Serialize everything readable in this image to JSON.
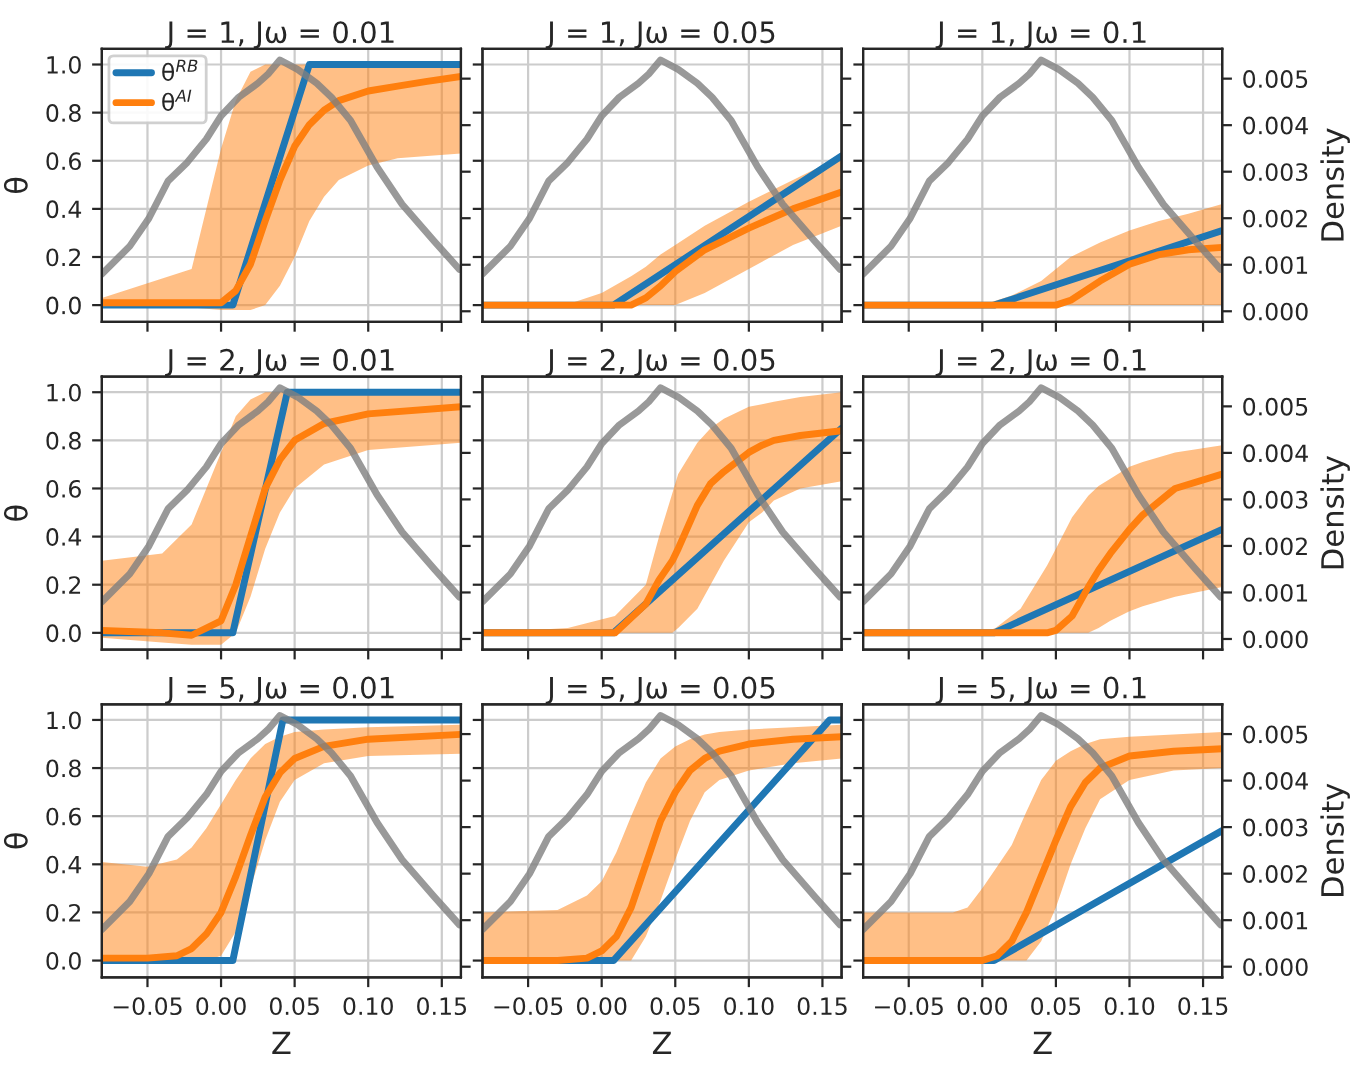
{
  "chart_data": [
    {
      "type": "line",
      "title": "J = 1, Jω = 0.01",
      "ylabel": "θ",
      "tick_labels": [
        "y"
      ],
      "legend": "top left",
      "grid": true,
      "xlim": [
        -0.081,
        0.163
      ],
      "ylim": [
        -0.07,
        1.065
      ],
      "yticks": [
        {
          "value": 0,
          "label": "0.0"
        },
        {
          "value": 0.2,
          "label": "0.2"
        },
        {
          "value": 0.4,
          "label": "0.4"
        },
        {
          "value": 0.6,
          "label": "0.6"
        },
        {
          "value": 0.8,
          "label": "0.8"
        },
        {
          "value": 1,
          "label": "1.0"
        }
      ],
      "y2lim": [
        -0.00023,
        0.00564
      ],
      "series": [
        {
          "name": "θ$^{RB}$",
          "color": "#1f77b4",
          "x": [
            -0.081,
            0.008,
            0.06,
            0.163
          ],
          "values": [
            0,
            0,
            1,
            1
          ]
        },
        {
          "name": "θ$^{AI}$",
          "color": "#ff7f0e",
          "x": [
            -0.081,
            -0.02,
            0.0,
            0.01,
            0.02,
            0.03,
            0.04,
            0.05,
            0.06,
            0.07,
            0.08,
            0.1,
            0.12,
            0.14,
            0.163
          ],
          "values": [
            0.01,
            0.01,
            0.01,
            0.06,
            0.17,
            0.35,
            0.52,
            0.66,
            0.75,
            0.81,
            0.85,
            0.89,
            0.91,
            0.93,
            0.95
          ],
          "lower": [
            0,
            -0.01,
            -0.02,
            -0.02,
            -0.02,
            0,
            0.08,
            0.2,
            0.35,
            0.45,
            0.52,
            0.58,
            0.61,
            0.62,
            0.63
          ],
          "upper": [
            0.03,
            0.15,
            0.65,
            0.85,
            0.97,
            1,
            1,
            1,
            1,
            1,
            1,
            1,
            1,
            1,
            1
          ]
        },
        {
          "color": "#808080",
          "axis": "y2",
          "x": [
            -0.081,
            -0.062,
            -0.049,
            -0.036,
            -0.023,
            -0.01,
            0.0,
            0.012,
            0.025,
            0.032,
            0.04,
            0.052,
            0.065,
            0.075,
            0.088,
            0.106,
            0.123,
            0.145,
            0.162
          ],
          "values": [
            0.0008,
            0.0014,
            0.002,
            0.0028,
            0.0032,
            0.0037,
            0.0042,
            0.0046,
            0.0049,
            0.0051,
            0.0054,
            0.0052,
            0.0049,
            0.0046,
            0.0041,
            0.0031,
            0.0023,
            0.0015,
            0.0009
          ]
        }
      ]
    },
    {
      "type": "line",
      "title": "J = 1, Jω = 0.05",
      "tick_labels": false,
      "grid": true,
      "xlim": [
        -0.081,
        0.163
      ],
      "ylim": [
        -0.07,
        1.065
      ],
      "y2lim": [
        -0.00023,
        0.00564
      ],
      "series": [
        {
          "color": "#1f77b4",
          "x": [
            -0.081,
            0.008,
            0.163
          ],
          "values": [
            0,
            0,
            0.62
          ]
        },
        {
          "color": "#ff7f0e",
          "x": [
            -0.081,
            -0.02,
            0.0,
            0.02,
            0.03,
            0.04,
            0.05,
            0.07,
            0.1,
            0.13,
            0.163
          ],
          "values": [
            0,
            0,
            0,
            0,
            0.03,
            0.08,
            0.14,
            0.23,
            0.32,
            0.4,
            0.47
          ],
          "lower": [
            0,
            0,
            0,
            0,
            0,
            0,
            0,
            0.05,
            0.15,
            0.25,
            0.33
          ],
          "upper": [
            0,
            0.01,
            0.05,
            0.12,
            0.16,
            0.21,
            0.25,
            0.33,
            0.43,
            0.52,
            0.62
          ]
        },
        {
          "color": "#808080",
          "axis": "y2",
          "x": [
            -0.081,
            -0.062,
            -0.049,
            -0.036,
            -0.023,
            -0.01,
            0.0,
            0.012,
            0.025,
            0.032,
            0.04,
            0.052,
            0.065,
            0.075,
            0.088,
            0.106,
            0.123,
            0.145,
            0.162
          ],
          "values": [
            0.0008,
            0.0014,
            0.002,
            0.0028,
            0.0032,
            0.0037,
            0.0042,
            0.0046,
            0.0049,
            0.0051,
            0.0054,
            0.0052,
            0.0049,
            0.0046,
            0.0041,
            0.0031,
            0.0023,
            0.0015,
            0.0009
          ]
        }
      ]
    },
    {
      "type": "line",
      "title": "J = 1, Jω = 0.1",
      "y2label": "Density",
      "tick_labels": [
        "y2"
      ],
      "grid": true,
      "xlim": [
        -0.081,
        0.163
      ],
      "ylim": [
        -0.07,
        1.065
      ],
      "y2lim": [
        -0.00023,
        0.00564
      ],
      "y2ticks": [
        {
          "value": 0,
          "label": "0.000"
        },
        {
          "value": 0.001,
          "label": "0.001"
        },
        {
          "value": 0.002,
          "label": "0.002"
        },
        {
          "value": 0.003,
          "label": "0.003"
        },
        {
          "value": 0.004,
          "label": "0.004"
        },
        {
          "value": 0.005,
          "label": "0.005"
        }
      ],
      "series": [
        {
          "color": "#1f77b4",
          "x": [
            -0.081,
            0.008,
            0.163
          ],
          "values": [
            0,
            0,
            0.31
          ]
        },
        {
          "color": "#ff7f0e",
          "x": [
            -0.081,
            0.0,
            0.02,
            0.04,
            0.05,
            0.06,
            0.08,
            0.1,
            0.12,
            0.14,
            0.163
          ],
          "values": [
            0,
            0,
            0,
            0,
            0,
            0.02,
            0.1,
            0.17,
            0.21,
            0.23,
            0.24
          ],
          "lower": [
            0,
            0,
            0,
            0,
            0,
            0,
            0,
            0,
            0,
            0,
            0
          ],
          "upper": [
            0,
            0,
            0.04,
            0.1,
            0.15,
            0.2,
            0.26,
            0.31,
            0.35,
            0.38,
            0.42
          ]
        },
        {
          "color": "#808080",
          "axis": "y2",
          "x": [
            -0.081,
            -0.062,
            -0.049,
            -0.036,
            -0.023,
            -0.01,
            0.0,
            0.012,
            0.025,
            0.032,
            0.04,
            0.052,
            0.065,
            0.075,
            0.088,
            0.106,
            0.123,
            0.145,
            0.162
          ],
          "values": [
            0.0008,
            0.0014,
            0.002,
            0.0028,
            0.0032,
            0.0037,
            0.0042,
            0.0046,
            0.0049,
            0.0051,
            0.0054,
            0.0052,
            0.0049,
            0.0046,
            0.0041,
            0.0031,
            0.0023,
            0.0015,
            0.0009
          ]
        }
      ]
    },
    {
      "type": "line",
      "title": "J = 2, Jω = 0.01",
      "ylabel": "θ",
      "tick_labels": [
        "y"
      ],
      "grid": true,
      "xlim": [
        -0.081,
        0.163
      ],
      "ylim": [
        -0.07,
        1.065
      ],
      "yticks": [
        {
          "value": 0,
          "label": "0.0"
        },
        {
          "value": 0.2,
          "label": "0.2"
        },
        {
          "value": 0.4,
          "label": "0.4"
        },
        {
          "value": 0.6,
          "label": "0.6"
        },
        {
          "value": 0.8,
          "label": "0.8"
        },
        {
          "value": 1,
          "label": "1.0"
        }
      ],
      "y2lim": [
        -0.00023,
        0.00564
      ],
      "series": [
        {
          "color": "#1f77b4",
          "x": [
            -0.081,
            0.008,
            0.045,
            0.163
          ],
          "values": [
            0,
            0,
            1,
            1
          ]
        },
        {
          "color": "#ff7f0e",
          "x": [
            -0.081,
            -0.04,
            -0.02,
            0.0,
            0.01,
            0.02,
            0.03,
            0.04,
            0.05,
            0.07,
            0.1,
            0.163
          ],
          "values": [
            0.01,
            0.0,
            -0.01,
            0.05,
            0.2,
            0.4,
            0.6,
            0.72,
            0.8,
            0.87,
            0.91,
            0.94
          ],
          "lower": [
            -0.02,
            -0.04,
            -0.05,
            -0.05,
            0.0,
            0.15,
            0.35,
            0.5,
            0.6,
            0.7,
            0.76,
            0.79
          ],
          "upper": [
            0.3,
            0.33,
            0.45,
            0.75,
            0.9,
            0.97,
            1,
            1,
            1,
            1,
            1,
            1
          ]
        },
        {
          "color": "#808080",
          "axis": "y2",
          "x": [
            -0.081,
            -0.062,
            -0.049,
            -0.036,
            -0.023,
            -0.01,
            0.0,
            0.012,
            0.025,
            0.032,
            0.04,
            0.052,
            0.065,
            0.075,
            0.088,
            0.106,
            0.123,
            0.145,
            0.162
          ],
          "values": [
            0.0008,
            0.0014,
            0.002,
            0.0028,
            0.0032,
            0.0037,
            0.0042,
            0.0046,
            0.0049,
            0.0051,
            0.0054,
            0.0052,
            0.0049,
            0.0046,
            0.0041,
            0.0031,
            0.0023,
            0.0015,
            0.0009
          ]
        }
      ]
    },
    {
      "type": "line",
      "title": "J = 2, Jω = 0.05",
      "tick_labels": false,
      "grid": true,
      "xlim": [
        -0.081,
        0.163
      ],
      "ylim": [
        -0.07,
        1.065
      ],
      "y2lim": [
        -0.00023,
        0.00564
      ],
      "series": [
        {
          "color": "#1f77b4",
          "x": [
            -0.081,
            0.008,
            0.163
          ],
          "values": [
            0,
            0,
            0.85
          ]
        },
        {
          "color": "#ff7f0e",
          "x": [
            -0.081,
            -0.023,
            0.009,
            0.03,
            0.039,
            0.048,
            0.052,
            0.065,
            0.074,
            0.083,
            0.1,
            0.109,
            0.117,
            0.135,
            0.163
          ],
          "values": [
            0,
            0,
            0,
            0.12,
            0.22,
            0.3,
            0.35,
            0.53,
            0.62,
            0.67,
            0.75,
            0.78,
            0.8,
            0.82,
            0.84
          ],
          "lower": [
            0,
            0,
            0,
            0,
            0,
            0,
            0.02,
            0.1,
            0.2,
            0.3,
            0.46,
            0.5,
            0.55,
            0.6,
            0.63
          ],
          "upper": [
            0,
            0.02,
            0.07,
            0.2,
            0.4,
            0.58,
            0.66,
            0.79,
            0.85,
            0.89,
            0.94,
            0.95,
            0.96,
            0.98,
            1.0
          ]
        },
        {
          "color": "#808080",
          "axis": "y2",
          "x": [
            -0.081,
            -0.062,
            -0.049,
            -0.036,
            -0.023,
            -0.01,
            0.0,
            0.012,
            0.025,
            0.032,
            0.04,
            0.052,
            0.065,
            0.075,
            0.088,
            0.106,
            0.123,
            0.145,
            0.162
          ],
          "values": [
            0.0008,
            0.0014,
            0.002,
            0.0028,
            0.0032,
            0.0037,
            0.0042,
            0.0046,
            0.0049,
            0.0051,
            0.0054,
            0.0052,
            0.0049,
            0.0046,
            0.0041,
            0.0031,
            0.0023,
            0.0015,
            0.0009
          ]
        }
      ]
    },
    {
      "type": "line",
      "title": "J = 2, Jω = 0.1",
      "y2label": "Density",
      "tick_labels": [
        "y2"
      ],
      "grid": true,
      "xlim": [
        -0.081,
        0.163
      ],
      "ylim": [
        -0.07,
        1.065
      ],
      "y2lim": [
        -0.00023,
        0.00564
      ],
      "y2ticks": [
        {
          "value": 0,
          "label": "0.000"
        },
        {
          "value": 0.001,
          "label": "0.001"
        },
        {
          "value": 0.002,
          "label": "0.002"
        },
        {
          "value": 0.003,
          "label": "0.003"
        },
        {
          "value": 0.004,
          "label": "0.004"
        },
        {
          "value": 0.005,
          "label": "0.005"
        }
      ],
      "series": [
        {
          "color": "#1f77b4",
          "x": [
            -0.081,
            0.008,
            0.163
          ],
          "values": [
            0,
            0,
            0.43
          ]
        },
        {
          "color": "#ff7f0e",
          "x": [
            -0.081,
            0.0,
            0.009,
            0.026,
            0.044,
            0.05,
            0.061,
            0.072,
            0.079,
            0.087,
            0.1,
            0.109,
            0.131,
            0.163
          ],
          "values": [
            0,
            0,
            0,
            0,
            0,
            0.01,
            0.07,
            0.19,
            0.26,
            0.33,
            0.43,
            0.49,
            0.6,
            0.66
          ],
          "lower": [
            0,
            0,
            0,
            0,
            0,
            0,
            0,
            0,
            0.02,
            0.05,
            0.09,
            0.11,
            0.15,
            0.19
          ],
          "upper": [
            0,
            0,
            0.02,
            0.1,
            0.28,
            0.35,
            0.48,
            0.57,
            0.61,
            0.64,
            0.69,
            0.71,
            0.75,
            0.78
          ]
        },
        {
          "color": "#808080",
          "axis": "y2",
          "x": [
            -0.081,
            -0.062,
            -0.049,
            -0.036,
            -0.023,
            -0.01,
            0.0,
            0.012,
            0.025,
            0.032,
            0.04,
            0.052,
            0.065,
            0.075,
            0.088,
            0.106,
            0.123,
            0.145,
            0.162
          ],
          "values": [
            0.0008,
            0.0014,
            0.002,
            0.0028,
            0.0032,
            0.0037,
            0.0042,
            0.0046,
            0.0049,
            0.0051,
            0.0054,
            0.0052,
            0.0049,
            0.0046,
            0.0041,
            0.0031,
            0.0023,
            0.0015,
            0.0009
          ]
        }
      ]
    },
    {
      "type": "line",
      "title": "J = 5, Jω = 0.01",
      "ylabel": "θ",
      "xlabel": "Z",
      "tick_labels": [
        "x",
        "y"
      ],
      "grid": true,
      "xlim": [
        -0.081,
        0.163
      ],
      "xticks": [
        {
          "value": -0.05,
          "label": "−0.05"
        },
        {
          "value": 0,
          "label": "0.00"
        },
        {
          "value": 0.05,
          "label": "0.05"
        },
        {
          "value": 0.1,
          "label": "0.10"
        },
        {
          "value": 0.15,
          "label": "0.15"
        }
      ],
      "ylim": [
        -0.07,
        1.065
      ],
      "yticks": [
        {
          "value": 0,
          "label": "0.0"
        },
        {
          "value": 0.2,
          "label": "0.2"
        },
        {
          "value": 0.4,
          "label": "0.4"
        },
        {
          "value": 0.6,
          "label": "0.6"
        },
        {
          "value": 0.8,
          "label": "0.8"
        },
        {
          "value": 1,
          "label": "1.0"
        }
      ],
      "y2lim": [
        -0.00023,
        0.00564
      ],
      "series": [
        {
          "color": "#1f77b4",
          "x": [
            -0.081,
            0.008,
            0.042,
            0.163
          ],
          "values": [
            0,
            0,
            1,
            1
          ]
        },
        {
          "color": "#ff7f0e",
          "x": [
            -0.081,
            -0.05,
            -0.03,
            -0.02,
            -0.01,
            0.0,
            0.01,
            0.02,
            0.03,
            0.04,
            0.05,
            0.07,
            0.1,
            0.163
          ],
          "values": [
            0.01,
            0.01,
            0.02,
            0.05,
            0.11,
            0.2,
            0.35,
            0.52,
            0.68,
            0.78,
            0.84,
            0.89,
            0.92,
            0.94
          ],
          "lower": [
            0,
            0,
            0,
            0,
            0,
            0.02,
            0.12,
            0.3,
            0.5,
            0.66,
            0.75,
            0.82,
            0.85,
            0.86
          ],
          "upper": [
            0.41,
            0.39,
            0.42,
            0.47,
            0.55,
            0.65,
            0.75,
            0.84,
            0.9,
            0.93,
            0.95,
            0.96,
            0.97,
            0.98
          ]
        },
        {
          "color": "#808080",
          "axis": "y2",
          "x": [
            -0.081,
            -0.062,
            -0.049,
            -0.036,
            -0.023,
            -0.01,
            0.0,
            0.012,
            0.025,
            0.032,
            0.04,
            0.052,
            0.065,
            0.075,
            0.088,
            0.106,
            0.123,
            0.145,
            0.162
          ],
          "values": [
            0.0008,
            0.0014,
            0.002,
            0.0028,
            0.0032,
            0.0037,
            0.0042,
            0.0046,
            0.0049,
            0.0051,
            0.0054,
            0.0052,
            0.0049,
            0.0046,
            0.0041,
            0.0031,
            0.0023,
            0.0015,
            0.0009
          ]
        }
      ]
    },
    {
      "type": "line",
      "title": "J = 5, Jω = 0.05",
      "xlabel": "Z",
      "tick_labels": [
        "x"
      ],
      "grid": true,
      "xlim": [
        -0.081,
        0.163
      ],
      "xticks": [
        {
          "value": -0.05,
          "label": "−0.05"
        },
        {
          "value": 0,
          "label": "0.00"
        },
        {
          "value": 0.05,
          "label": "0.05"
        },
        {
          "value": 0.1,
          "label": "0.10"
        },
        {
          "value": 0.15,
          "label": "0.15"
        }
      ],
      "ylim": [
        -0.07,
        1.065
      ],
      "y2lim": [
        -0.00023,
        0.00564
      ],
      "series": [
        {
          "color": "#1f77b4",
          "x": [
            -0.081,
            0.008,
            0.155,
            0.163
          ],
          "values": [
            0,
            0,
            1,
            1
          ]
        },
        {
          "color": "#ff7f0e",
          "x": [
            -0.081,
            -0.03,
            -0.01,
            0.0,
            0.01,
            0.02,
            0.03,
            0.04,
            0.05,
            0.06,
            0.07,
            0.08,
            0.1,
            0.13,
            0.163
          ],
          "values": [
            0,
            0,
            0.01,
            0.04,
            0.1,
            0.22,
            0.4,
            0.58,
            0.7,
            0.79,
            0.84,
            0.87,
            0.9,
            0.92,
            0.93
          ],
          "lower": [
            0,
            0,
            0,
            0,
            0,
            0,
            0.1,
            0.25,
            0.42,
            0.58,
            0.7,
            0.75,
            0.79,
            0.82,
            0.84
          ],
          "upper": [
            0.2,
            0.21,
            0.27,
            0.33,
            0.45,
            0.6,
            0.74,
            0.84,
            0.89,
            0.92,
            0.94,
            0.95,
            0.96,
            0.97,
            0.98
          ]
        },
        {
          "color": "#808080",
          "axis": "y2",
          "x": [
            -0.081,
            -0.062,
            -0.049,
            -0.036,
            -0.023,
            -0.01,
            0.0,
            0.012,
            0.025,
            0.032,
            0.04,
            0.052,
            0.065,
            0.075,
            0.088,
            0.106,
            0.123,
            0.145,
            0.162
          ],
          "values": [
            0.0008,
            0.0014,
            0.002,
            0.0028,
            0.0032,
            0.0037,
            0.0042,
            0.0046,
            0.0049,
            0.0051,
            0.0054,
            0.0052,
            0.0049,
            0.0046,
            0.0041,
            0.0031,
            0.0023,
            0.0015,
            0.0009
          ]
        }
      ]
    },
    {
      "type": "line",
      "title": "J = 5, Jω = 0.1",
      "xlabel": "Z",
      "y2label": "Density",
      "tick_labels": [
        "x",
        "y2"
      ],
      "grid": true,
      "xlim": [
        -0.081,
        0.163
      ],
      "xticks": [
        {
          "value": -0.05,
          "label": "−0.05"
        },
        {
          "value": 0,
          "label": "0.00"
        },
        {
          "value": 0.05,
          "label": "0.05"
        },
        {
          "value": 0.1,
          "label": "0.10"
        },
        {
          "value": 0.15,
          "label": "0.15"
        }
      ],
      "ylim": [
        -0.07,
        1.065
      ],
      "y2lim": [
        -0.00023,
        0.00564
      ],
      "y2ticks": [
        {
          "value": 0,
          "label": "0.000"
        },
        {
          "value": 0.001,
          "label": "0.001"
        },
        {
          "value": 0.002,
          "label": "0.002"
        },
        {
          "value": 0.003,
          "label": "0.003"
        },
        {
          "value": 0.004,
          "label": "0.004"
        },
        {
          "value": 0.005,
          "label": "0.005"
        }
      ],
      "series": [
        {
          "color": "#1f77b4",
          "x": [
            -0.081,
            0.008,
            0.163
          ],
          "values": [
            0,
            0,
            0.54
          ]
        },
        {
          "color": "#ff7f0e",
          "x": [
            -0.081,
            -0.02,
            -0.01,
            0.0,
            0.01,
            0.02,
            0.03,
            0.04,
            0.05,
            0.06,
            0.07,
            0.08,
            0.1,
            0.13,
            0.163
          ],
          "values": [
            0,
            0,
            0,
            0,
            0.02,
            0.08,
            0.2,
            0.35,
            0.5,
            0.64,
            0.74,
            0.8,
            0.85,
            0.87,
            0.88
          ],
          "lower": [
            0,
            0,
            0,
            0,
            0,
            0,
            0,
            0.08,
            0.22,
            0.4,
            0.55,
            0.67,
            0.75,
            0.79,
            0.8
          ],
          "upper": [
            0.2,
            0.2,
            0.22,
            0.3,
            0.39,
            0.48,
            0.62,
            0.75,
            0.83,
            0.87,
            0.9,
            0.92,
            0.93,
            0.94,
            0.95
          ]
        },
        {
          "color": "#808080",
          "axis": "y2",
          "x": [
            -0.081,
            -0.062,
            -0.049,
            -0.036,
            -0.023,
            -0.01,
            0.0,
            0.012,
            0.025,
            0.032,
            0.04,
            0.052,
            0.065,
            0.075,
            0.088,
            0.106,
            0.123,
            0.145,
            0.162
          ],
          "values": [
            0.0008,
            0.0014,
            0.002,
            0.0028,
            0.0032,
            0.0037,
            0.0042,
            0.0046,
            0.0049,
            0.0051,
            0.0054,
            0.0052,
            0.0049,
            0.0046,
            0.0041,
            0.0031,
            0.0023,
            0.0015,
            0.0009
          ]
        }
      ]
    }
  ]
}
